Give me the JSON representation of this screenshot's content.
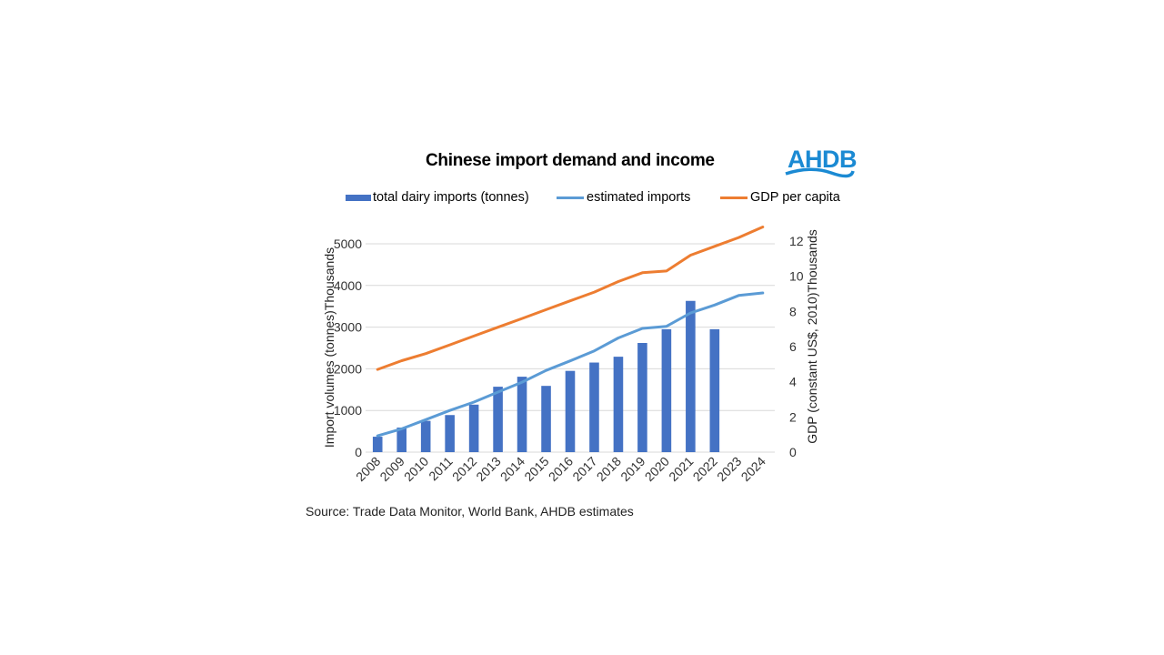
{
  "header": {
    "title": "Chinese import demand and income",
    "logo_text": "AHDB",
    "logo_color": "#1b8ad3"
  },
  "source": "Source: Trade Data Monitor, World Bank, AHDB estimates",
  "chart_data": {
    "type": "bar",
    "title": "Chinese import demand and income",
    "categories": [
      "2008",
      "2009",
      "2010",
      "2011",
      "2012",
      "2013",
      "2014",
      "2015",
      "2016",
      "2017",
      "2018",
      "2019",
      "2020",
      "2021",
      "2022",
      "2023",
      "2024"
    ],
    "series": [
      {
        "name": "total dairy imports (tonnes)",
        "type": "bar",
        "axis": "left",
        "color": "#4472c4",
        "values": [
          370,
          590,
          750,
          890,
          1140,
          1570,
          1810,
          1590,
          1950,
          2150,
          2290,
          2620,
          2950,
          3630,
          2950,
          null,
          null
        ]
      },
      {
        "name": "estimated imports",
        "type": "line",
        "axis": "left",
        "color": "#5b9bd5",
        "values": [
          390,
          560,
          780,
          1000,
          1200,
          1440,
          1680,
          1960,
          2190,
          2430,
          2740,
          2970,
          3020,
          3340,
          3530,
          3760,
          3820
        ]
      },
      {
        "name": "GDP per capita",
        "type": "line",
        "axis": "right",
        "color": "#ed7d31",
        "values": [
          4.7,
          5.2,
          5.6,
          6.1,
          6.6,
          7.1,
          7.6,
          8.1,
          8.6,
          9.1,
          9.7,
          10.2,
          10.3,
          11.2,
          11.7,
          12.2,
          12.8
        ]
      }
    ],
    "y_left": {
      "label": "Import volumes (tonnes)Thousands",
      "ylim": [
        0,
        5000
      ],
      "ticks": [
        "0",
        "1000",
        "2000",
        "3000",
        "4000",
        "5000"
      ]
    },
    "y_right": {
      "label": "GDP (constant US$, 2010)Thousands",
      "ylim": [
        0,
        12
      ],
      "ticks": [
        "0",
        "2",
        "4",
        "6",
        "8",
        "10",
        "12"
      ]
    },
    "xlabel": "",
    "grid": true,
    "legend_position": "top"
  }
}
